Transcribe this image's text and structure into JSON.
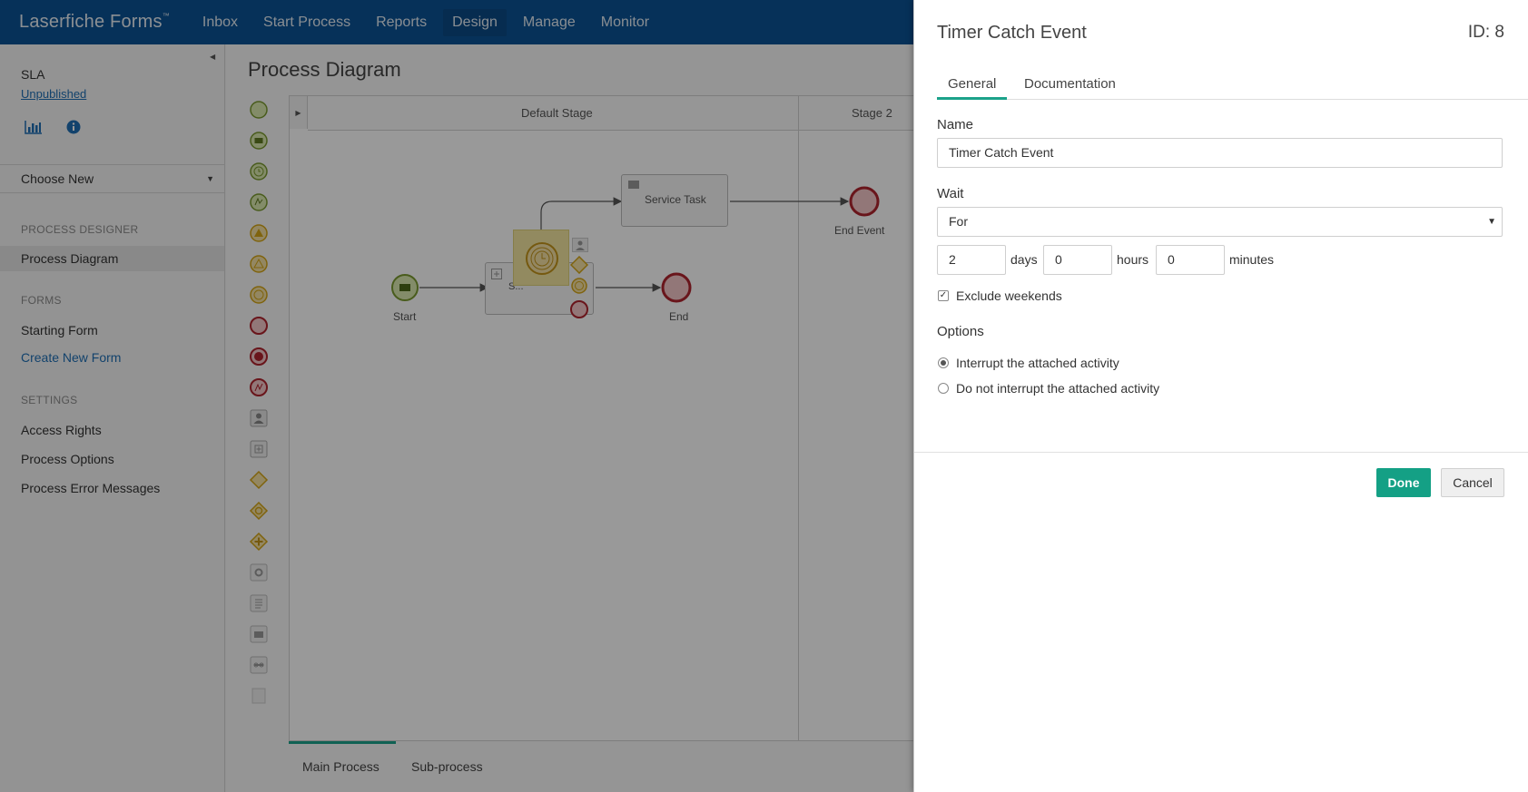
{
  "nav": {
    "brand": "Laserfiche Forms",
    "brand_mark": "™",
    "items": [
      {
        "label": "Inbox"
      },
      {
        "label": "Start Process"
      },
      {
        "label": "Reports"
      },
      {
        "label": "Design"
      },
      {
        "label": "Manage"
      },
      {
        "label": "Monitor"
      }
    ],
    "active": "Design"
  },
  "sidebar": {
    "process_name": "SLA",
    "status_link": "Unpublished",
    "choose_new": "Choose New",
    "sections": {
      "designer": "PROCESS DESIGNER",
      "forms": "FORMS",
      "settings": "SETTINGS"
    },
    "links": {
      "process_diagram": "Process Diagram",
      "starting_form": "Starting Form",
      "create_new_form": "Create New Form",
      "access_rights": "Access Rights",
      "process_options": "Process Options",
      "process_error_messages": "Process Error Messages"
    }
  },
  "main": {
    "title": "Process Diagram",
    "stages": [
      "Default Stage",
      "Stage 2"
    ],
    "nodes": {
      "start": "Start",
      "end": "End",
      "service_task": "Service Task",
      "end_event": "End Event",
      "subprocess": "S..."
    },
    "bottom_tabs": [
      "Main Process",
      "Sub-process"
    ]
  },
  "panel": {
    "title": "Timer Catch Event",
    "id_label": "ID: 8",
    "tabs": [
      "General",
      "Documentation"
    ],
    "name_label": "Name",
    "name_value": "Timer Catch Event",
    "wait_label": "Wait",
    "wait_value": "For",
    "days_value": "2",
    "days_unit": "days",
    "hours_value": "0",
    "hours_unit": "hours",
    "minutes_value": "0",
    "minutes_unit": "minutes",
    "exclude_weekends": "Exclude weekends",
    "options_label": "Options",
    "option_interrupt": "Interrupt the attached activity",
    "option_no_interrupt": "Do not interrupt the attached activity",
    "done": "Done",
    "cancel": "Cancel"
  },
  "colors": {
    "nav_bg": "#0b5394",
    "accent": "#14a085",
    "event_green": "#7a9a2f",
    "event_red": "#b0232e",
    "gateway_yellow": "#d4a516"
  }
}
